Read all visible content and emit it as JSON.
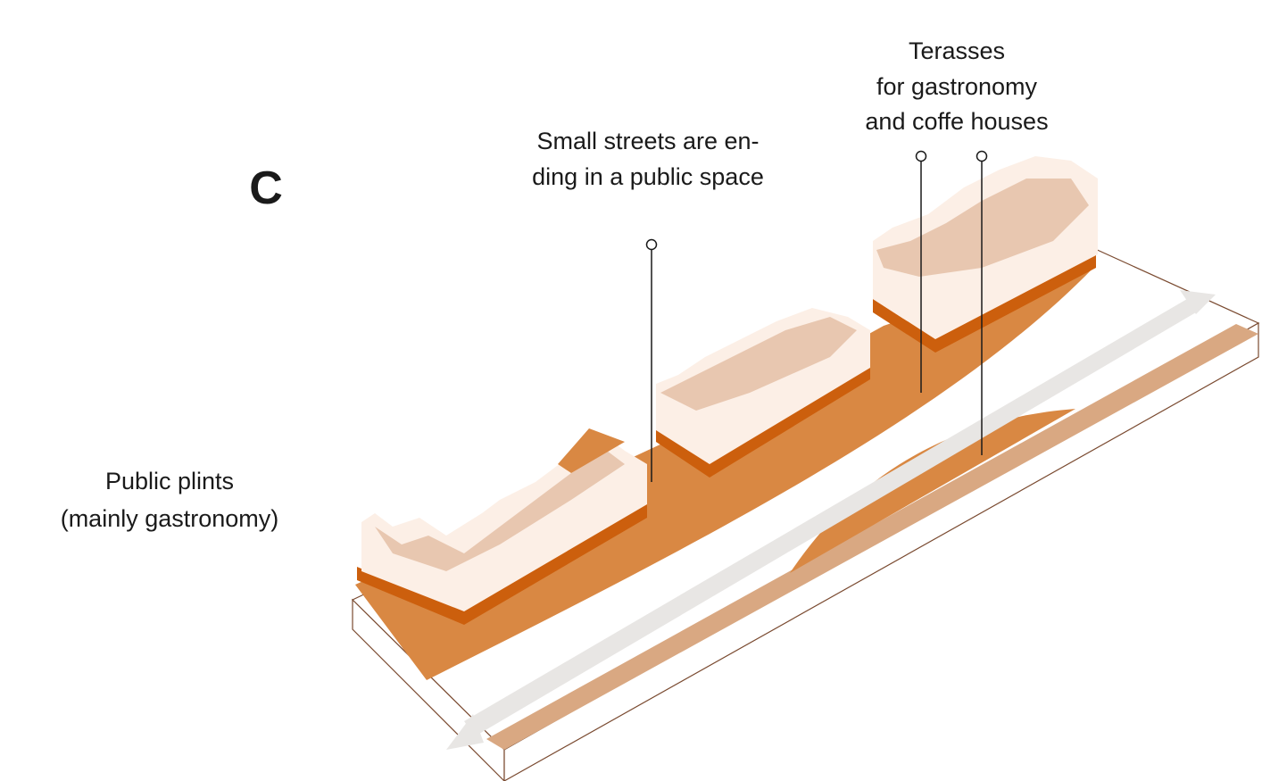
{
  "section_label": "C",
  "annotations": [
    {
      "lines": [
        "Public plints",
        "(mainly gastronomy)"
      ]
    },
    {
      "lines": [
        "Small streets are en-",
        "ding in a public space"
      ]
    },
    {
      "lines": [
        "Terasses",
        "for gastronomy",
        "and coffe houses"
      ]
    }
  ]
}
